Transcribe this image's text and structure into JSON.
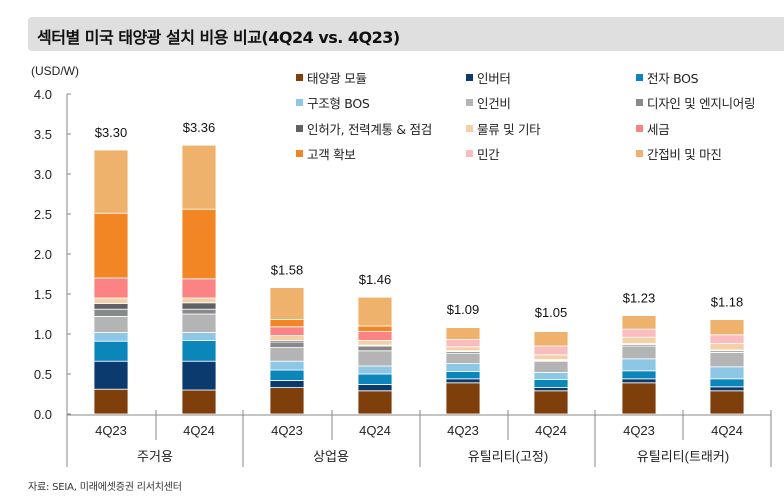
{
  "title": "섹터별 미국 태양광 설치 비용 비교(4Q24 vs. 4Q23)",
  "unit_label": "(USD/W)",
  "source": "자료: SEIA, 미래에셋증권 리서치센터",
  "chart_data": {
    "type": "bar",
    "stacked": true,
    "title": "섹터별 미국 태양광 설치 비용 비교(4Q24 vs. 4Q23)",
    "xlabel": "",
    "ylabel": "(USD/W)",
    "ylim": [
      0,
      4.0
    ],
    "yticks": [
      "0.0",
      "0.5",
      "1.0",
      "1.5",
      "2.0",
      "2.5",
      "3.0",
      "3.5",
      "4.0"
    ],
    "ytick_values": [
      0,
      0.5,
      1.0,
      1.5,
      2.0,
      2.5,
      3.0,
      3.5,
      4.0
    ],
    "grid": false,
    "legend_position": "top-right",
    "groups": [
      {
        "name": "주거용",
        "categories": [
          "4Q23",
          "4Q24"
        ]
      },
      {
        "name": "상업용",
        "categories": [
          "4Q23",
          "4Q24"
        ]
      },
      {
        "name": "유틸리티(고정)",
        "categories": [
          "4Q23",
          "4Q24"
        ]
      },
      {
        "name": "유틸리티(트래커)",
        "categories": [
          "4Q23",
          "4Q24"
        ]
      }
    ],
    "categories": [
      "4Q23",
      "4Q24",
      "4Q23",
      "4Q24",
      "4Q23",
      "4Q24",
      "4Q23",
      "4Q24"
    ],
    "totals": [
      3.3,
      3.36,
      1.58,
      1.46,
      1.09,
      1.05,
      1.23,
      1.18
    ],
    "total_labels": [
      "$3.30",
      "$3.36",
      "$1.58",
      "$1.46",
      "$1.09",
      "$1.05",
      "$1.23",
      "$1.18"
    ],
    "series": [
      {
        "name": "태양광 모듈",
        "color": "#7f3f0a",
        "values": [
          0.31,
          0.3,
          0.33,
          0.29,
          0.39,
          0.29,
          0.39,
          0.29
        ]
      },
      {
        "name": "인버터",
        "color": "#0b3a6e",
        "values": [
          0.35,
          0.36,
          0.09,
          0.08,
          0.05,
          0.04,
          0.05,
          0.05
        ]
      },
      {
        "name": "전자 BOS",
        "color": "#0a86bb",
        "values": [
          0.25,
          0.26,
          0.13,
          0.13,
          0.09,
          0.1,
          0.1,
          0.1
        ]
      },
      {
        "name": "구조형 BOS",
        "color": "#8ec6e6",
        "values": [
          0.11,
          0.1,
          0.11,
          0.1,
          0.1,
          0.09,
          0.15,
          0.15
        ]
      },
      {
        "name": "인건비",
        "color": "#b4b4b4",
        "values": [
          0.2,
          0.23,
          0.17,
          0.19,
          0.13,
          0.14,
          0.16,
          0.18
        ]
      },
      {
        "name": "디자인 및 엔지니어링",
        "color": "#88898b",
        "values": [
          0.09,
          0.06,
          0.07,
          0.06,
          0.02,
          0.01,
          0.02,
          0.02
        ]
      },
      {
        "name": "인허가, 전력계통 & 점검",
        "color": "#606266",
        "values": [
          0.07,
          0.08,
          0.02,
          0.01,
          0.01,
          0.01,
          0.01,
          0.01
        ]
      },
      {
        "name": "물류 및 기타",
        "color": "#f5d0a6",
        "values": [
          0.07,
          0.06,
          0.06,
          0.06,
          0.05,
          0.06,
          0.08,
          0.08
        ]
      },
      {
        "name": "세금",
        "color": "#fc8383",
        "values": [
          0.25,
          0.24,
          0.11,
          0.11,
          0.0,
          0.0,
          0.0,
          0.0
        ]
      },
      {
        "name": "고객 확보",
        "color": "#f28524",
        "values": [
          0.81,
          0.87,
          0.09,
          0.07,
          0.0,
          0.0,
          0.0,
          0.0
        ]
      },
      {
        "name": "민간",
        "color": "#fbbcc0",
        "values": [
          0.0,
          0.0,
          0.0,
          0.0,
          0.09,
          0.11,
          0.1,
          0.11
        ]
      },
      {
        "name": "간접비 및 마진",
        "color": "#efb26c",
        "values": [
          0.79,
          0.8,
          0.4,
          0.36,
          0.15,
          0.18,
          0.17,
          0.19
        ]
      }
    ]
  }
}
